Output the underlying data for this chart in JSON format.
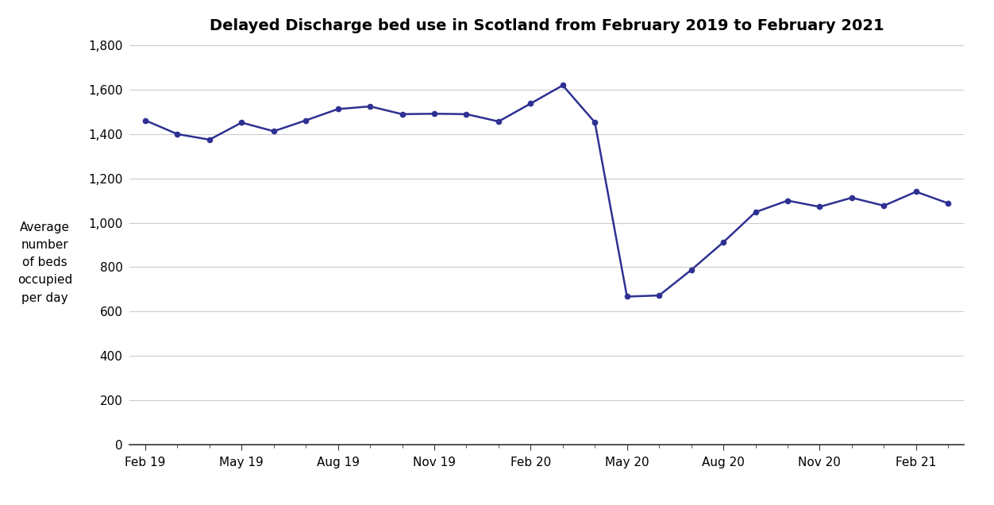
{
  "title": "Delayed Discharge bed use in Scotland from February 2019 to February 2021",
  "ylabel_lines": [
    "Average",
    "number",
    "of beds",
    "occupied",
    "per day"
  ],
  "line_color": "#2E3192",
  "marker_color": "#2E3192",
  "background_color": "#ffffff",
  "grid_color": "#cccccc",
  "x_labels": [
    "Feb 19",
    "May 19",
    "Aug 19",
    "Nov 19",
    "Feb 20",
    "May 20",
    "Aug 20",
    "Nov 20",
    "Feb 21"
  ],
  "data_points": [
    {
      "month": 0,
      "y": 1462
    },
    {
      "month": 1,
      "y": 1400
    },
    {
      "month": 2,
      "y": 1375
    },
    {
      "month": 3,
      "y": 1452
    },
    {
      "month": 4,
      "y": 1413
    },
    {
      "month": 5,
      "y": 1462
    },
    {
      "month": 6,
      "y": 1513
    },
    {
      "month": 7,
      "y": 1525
    },
    {
      "month": 8,
      "y": 1490
    },
    {
      "month": 9,
      "y": 1492
    },
    {
      "month": 10,
      "y": 1490
    },
    {
      "month": 11,
      "y": 1457
    },
    {
      "month": 12,
      "y": 1538
    },
    {
      "month": 13,
      "y": 1620
    },
    {
      "month": 14,
      "y": 1453
    },
    {
      "month": 15,
      "y": 667
    },
    {
      "month": 16,
      "y": 672
    },
    {
      "month": 17,
      "y": 787
    },
    {
      "month": 18,
      "y": 912
    },
    {
      "month": 19,
      "y": 1048
    },
    {
      "month": 20,
      "y": 1100
    },
    {
      "month": 21,
      "y": 1072
    },
    {
      "month": 22,
      "y": 1113
    },
    {
      "month": 23,
      "y": 1077
    },
    {
      "month": 24,
      "y": 1140
    },
    {
      "month": 25,
      "y": 1088
    }
  ],
  "ylim": [
    0,
    1800
  ],
  "yticks": [
    0,
    200,
    400,
    600,
    800,
    1000,
    1200,
    1400,
    1600,
    1800
  ],
  "title_fontsize": 14,
  "tick_fontsize": 11,
  "ylabel_fontsize": 11,
  "axis_color": "#333333"
}
